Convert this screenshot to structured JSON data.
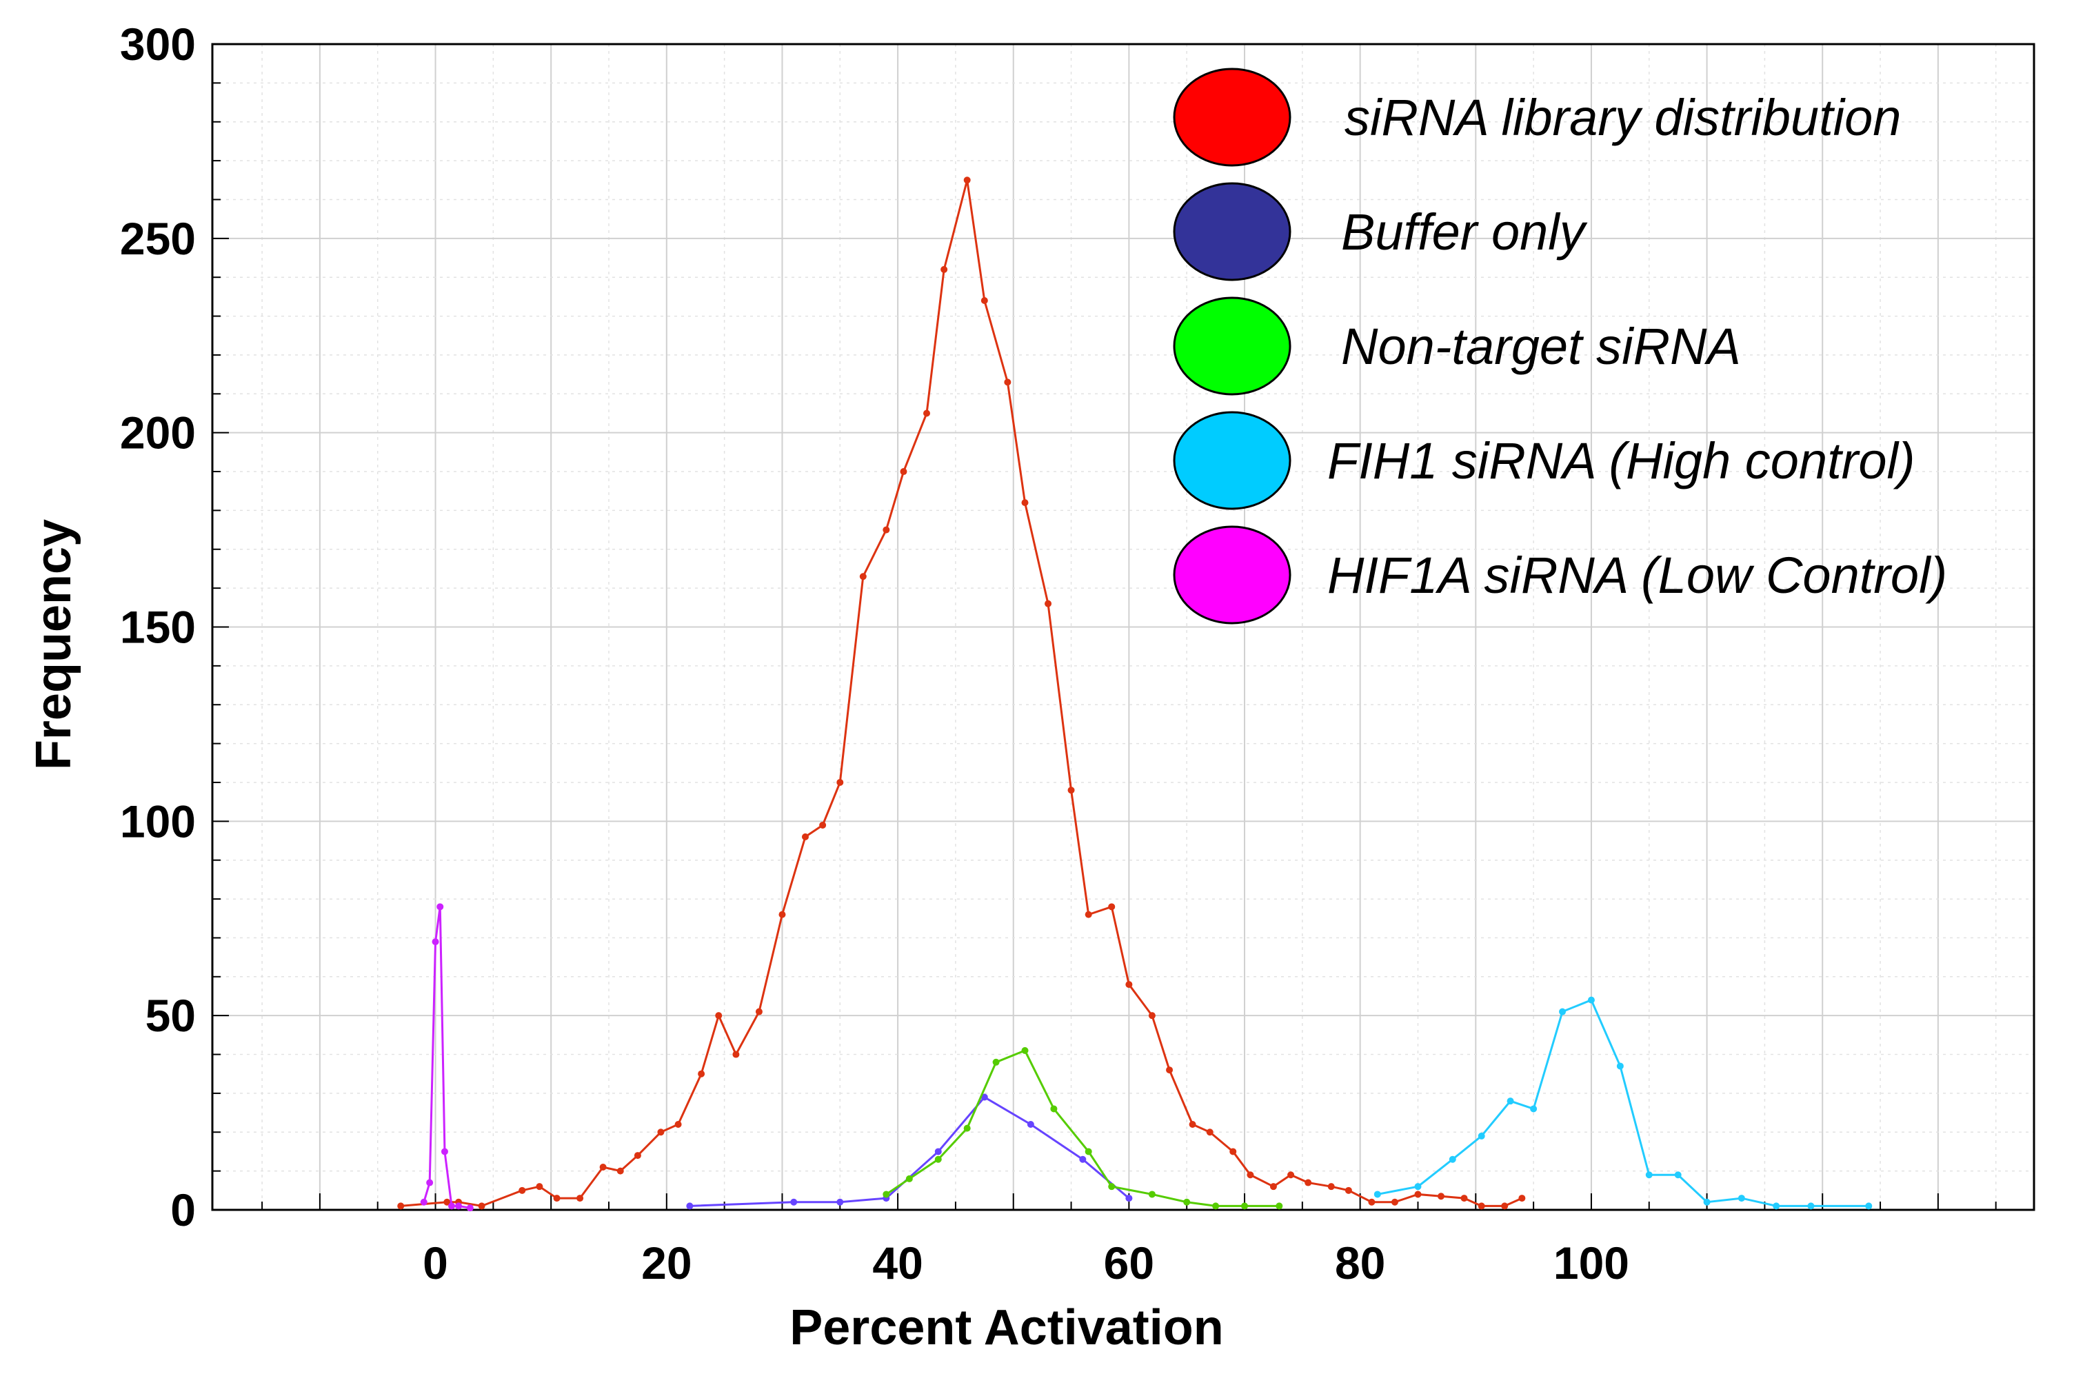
{
  "chart_data": {
    "type": "line",
    "title": "",
    "xlabel": "Percent Activation",
    "ylabel": "Frequency",
    "xlim": [
      -19.3,
      138.3
    ],
    "ylim": [
      0,
      300
    ],
    "xticks": [
      0,
      20,
      40,
      60,
      80,
      100
    ],
    "yticks": [
      0,
      50,
      100,
      150,
      200,
      250,
      300
    ],
    "grid": true,
    "legend_position": "top-right",
    "series": [
      {
        "name": "siRNA library distribution",
        "legend_color": "#ff0000",
        "line_color": "#dd3311",
        "x": [
          -3,
          1,
          2,
          4,
          7.5,
          9,
          10.5,
          12.5,
          14.5,
          16,
          17.5,
          19.5,
          21,
          23,
          24.5,
          26,
          28,
          30,
          32,
          33.5,
          35,
          37,
          39,
          40.5,
          42.5,
          44,
          46,
          47.5,
          49.5,
          51,
          53,
          55,
          56.5,
          58.5,
          60,
          62,
          63.5,
          65.5,
          67,
          69,
          70.5,
          72.5,
          74,
          75.5,
          77.5,
          79,
          81,
          83,
          85,
          87,
          89,
          90.5,
          92.5,
          94
        ],
        "y": [
          1,
          2,
          2,
          1,
          5,
          6,
          3,
          3,
          11,
          10,
          14,
          20,
          22,
          35,
          50,
          40,
          51,
          76,
          96,
          99,
          110,
          163,
          175,
          190,
          205,
          242,
          265,
          234,
          213,
          182,
          156,
          108,
          76,
          78,
          58,
          50,
          36,
          22,
          20,
          15,
          9,
          6,
          9,
          7,
          6,
          5,
          2,
          2,
          4,
          3.5,
          3,
          1,
          1,
          3
        ]
      },
      {
        "name": "Buffer only",
        "legend_color": "#333399",
        "line_color": "#6644ff",
        "x": [
          22,
          31,
          35,
          39,
          43.5,
          47.5,
          51.5,
          56,
          60
        ],
        "y": [
          1,
          2,
          2,
          3,
          15,
          29,
          22,
          13,
          3
        ]
      },
      {
        "name": "Non-target siRNA",
        "legend_color": "#00ff00",
        "line_color": "#55cc00",
        "x": [
          39,
          41,
          43.5,
          46,
          48.5,
          51,
          53.5,
          56.5,
          58.5,
          62,
          65,
          67.5,
          70,
          73
        ],
        "y": [
          4,
          8,
          13,
          21,
          38,
          41,
          26,
          15,
          6,
          4,
          2,
          1,
          1,
          1
        ]
      },
      {
        "name": "FIH1 siRNA (High control)",
        "legend_color": "#00ccff",
        "line_color": "#22ccff",
        "x": [
          81.5,
          85,
          88,
          90.5,
          93,
          95,
          97.5,
          100,
          102.5,
          105,
          107.5,
          110,
          113,
          116,
          119,
          124
        ],
        "y": [
          4,
          6,
          13,
          19,
          28,
          26,
          51,
          54,
          37,
          9,
          9,
          2,
          3,
          1,
          1,
          1
        ]
      },
      {
        "name": "HIF1A siRNA (Low Control)",
        "legend_color": "#ff00ff",
        "line_color": "#cc22ff",
        "x": [
          -1,
          -0.5,
          0,
          0.4,
          0.8,
          1.4,
          2,
          3
        ],
        "y": [
          2,
          7,
          69,
          78,
          15,
          1,
          1,
          0.5
        ]
      }
    ]
  }
}
